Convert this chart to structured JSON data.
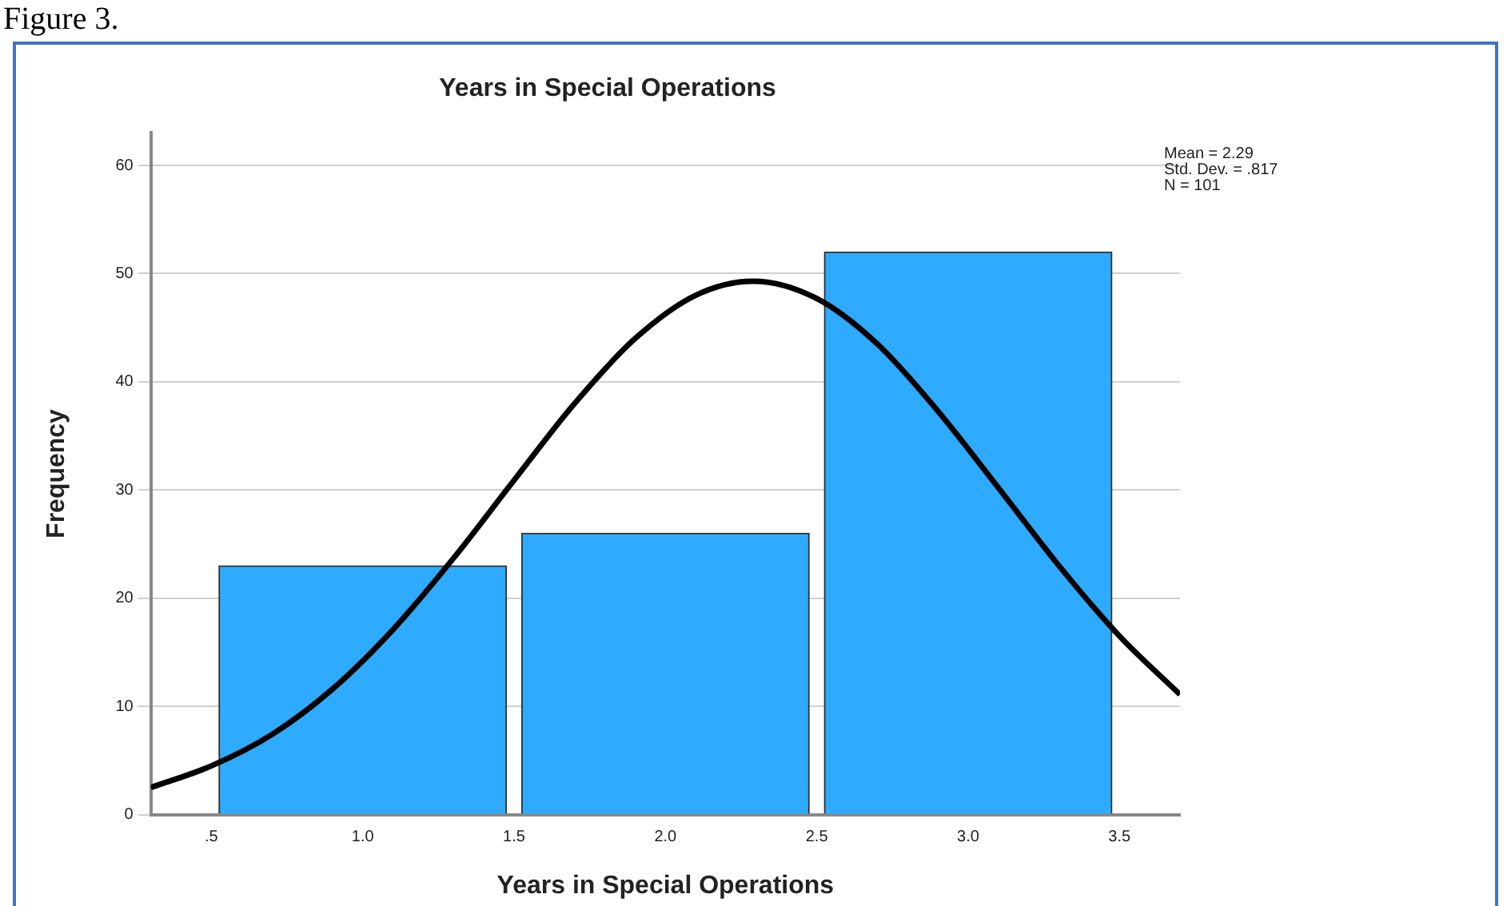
{
  "chart_data": {
    "type": "histogram",
    "title": "Years in Special Operations",
    "xlabel": "Years in Special Operations",
    "ylabel": "Frequency",
    "bins": [
      0.5,
      1.5,
      2.5,
      3.5
    ],
    "values": [
      23,
      26,
      52
    ],
    "color": "#2eabfe",
    "series": [
      {
        "type": "line",
        "color": "#000000",
        "marker": "none",
        "x": [
          0.3,
          0.5,
          0.7,
          0.9,
          1.1,
          1.3,
          1.5,
          1.7,
          1.9,
          2.1,
          2.29,
          2.5,
          2.7,
          2.9,
          3.1,
          3.3,
          3.5,
          3.7
        ],
        "values": [
          2.5,
          4.5,
          7.4,
          11.6,
          17.1,
          23.7,
          30.9,
          38.0,
          44.0,
          48.0,
          49.3,
          47.7,
          43.5,
          37.3,
          30.2,
          23.0,
          16.5,
          11.1
        ]
      }
    ],
    "xlim": [
      0.3,
      3.7
    ],
    "xticks": [
      {
        "value": 0.5,
        "label": ".5"
      },
      {
        "value": 1,
        "label": "1.0"
      },
      {
        "value": 1.5,
        "label": "1.5"
      },
      {
        "value": 2,
        "label": "2.0"
      },
      {
        "value": 2.5,
        "label": "2.5"
      },
      {
        "value": 3,
        "label": "3.0"
      },
      {
        "value": 3.5,
        "label": "3.5"
      }
    ],
    "ylim": [
      0,
      63
    ],
    "yticks": [
      0,
      10,
      20,
      30,
      40,
      50,
      60
    ],
    "grid": "y",
    "legend": false,
    "annotations": [
      "Figure 3.",
      "Mean = 2.29\nStd. Dev. = .817\nN = 101"
    ]
  }
}
